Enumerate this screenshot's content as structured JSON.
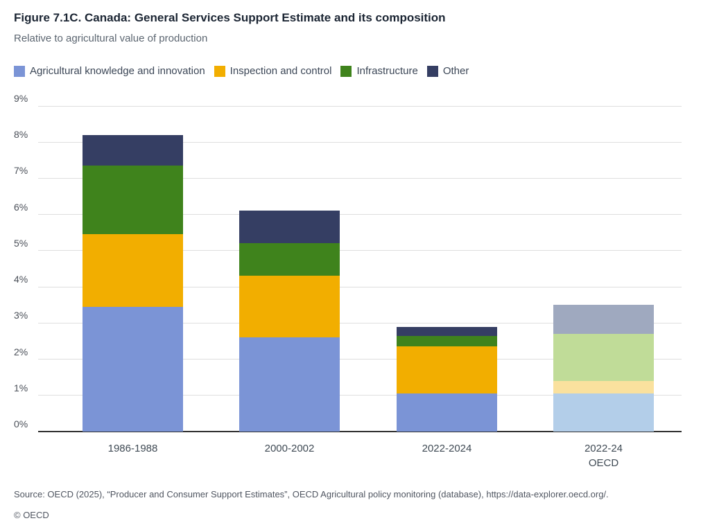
{
  "header": {
    "title": "Figure 7.1C. Canada: General Services Support Estimate and its composition",
    "subtitle": "Relative to agricultural value of production"
  },
  "legend": [
    {
      "label": "Agricultural knowledge and innovation",
      "color": "#7b94d6"
    },
    {
      "label": "Inspection and control",
      "color": "#f2ae00"
    },
    {
      "label": "Infrastructure",
      "color": "#3f831c"
    },
    {
      "label": "Other",
      "color": "#353e63"
    }
  ],
  "chart_data": {
    "type": "bar",
    "stacked": true,
    "title": "Figure 7.1C. Canada: General Services Support Estimate and its composition",
    "subtitle": "Relative to agricultural value of production",
    "categories": [
      "1986-1988",
      "2000-2002",
      "2022-2024",
      "2022-24\nOECD"
    ],
    "series": [
      {
        "name": "Agricultural knowledge and innovation",
        "values": [
          3.45,
          2.6,
          1.05,
          1.05
        ]
      },
      {
        "name": "Inspection and control",
        "values": [
          2.0,
          1.7,
          1.3,
          0.35
        ]
      },
      {
        "name": "Infrastructure",
        "values": [
          1.9,
          0.9,
          0.3,
          1.3
        ]
      },
      {
        "name": "Other",
        "values": [
          0.85,
          0.9,
          0.25,
          0.8
        ]
      }
    ],
    "bar_totals": [
      8.2,
      6.1,
      2.9,
      3.5
    ],
    "xlabel": "",
    "ylabel": "",
    "ylim": [
      0,
      9
    ],
    "y_tick_labels": [
      "0%",
      "1%",
      "2%",
      "3%",
      "4%",
      "5%",
      "6%",
      "7%",
      "8%",
      "9%"
    ],
    "grid": "horizontal",
    "legend_position": "top",
    "colors_main": [
      "#7b94d6",
      "#f2ae00",
      "#3f831c",
      "#353e63"
    ],
    "colors_oecd_bar": [
      "#b3cee9",
      "#fae19e",
      "#c0dc98",
      "#9fa9bf"
    ],
    "muted_bar_index": 3
  },
  "footer": {
    "source": "Source: OECD (2025), “Producer and Consumer Support Estimates”, OECD Agricultural policy monitoring (database), https://data-explorer.oecd.org/.",
    "copyright": "© OECD"
  }
}
